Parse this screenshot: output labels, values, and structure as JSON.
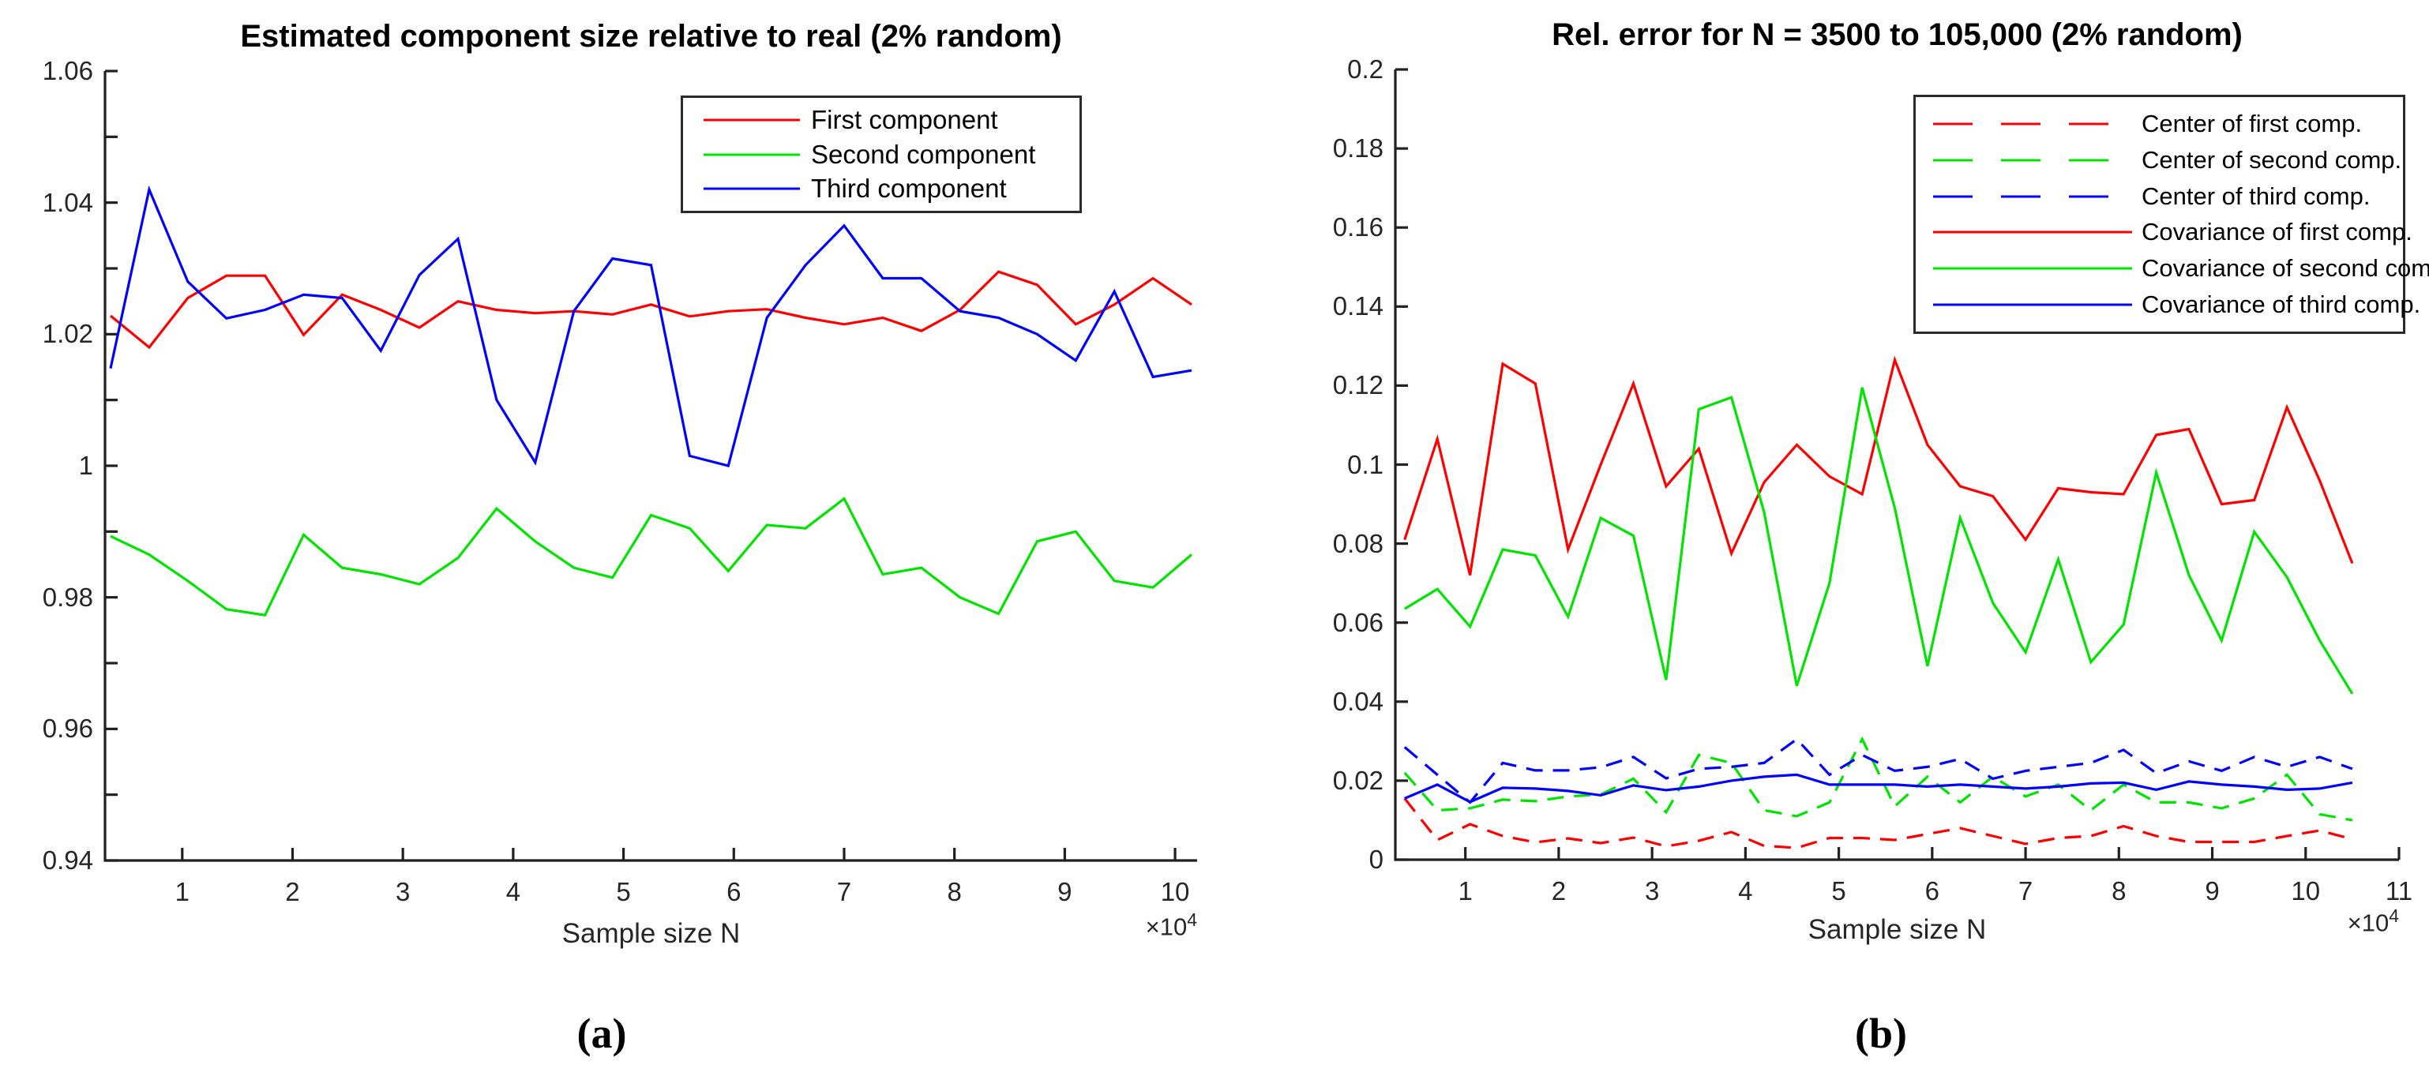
{
  "figure": {
    "background": "#ffffff",
    "axis_color": "#202020",
    "tick_label_color": "#262626",
    "captions": [
      "(a)",
      "(b)"
    ]
  },
  "chart_data": [
    {
      "type": "line",
      "panel": "a",
      "title": "Estimated component size relative to real (2% random)",
      "xlabel": "Sample size N",
      "x_scale_label": {
        "base": "×10",
        "exponent": "4"
      },
      "xlim": [
        0.3,
        10.2
      ],
      "ylim": [
        0.94,
        1.06
      ],
      "grid": false,
      "xticks": {
        "values": [
          1,
          2,
          3,
          4,
          5,
          6,
          7,
          8,
          9,
          10
        ],
        "labels": [
          "1",
          "2",
          "3",
          "4",
          "5",
          "6",
          "7",
          "8",
          "9",
          "10"
        ]
      },
      "yticks": {
        "values": [
          0.94,
          0.96,
          0.98,
          1.0,
          1.02,
          1.04,
          1.06
        ],
        "labels": [
          "0.94",
          "0.96",
          "0.98",
          "1",
          "1.02",
          "1.04",
          "1.06"
        ]
      },
      "y_minor_tick_step": 0.01,
      "legend": {
        "position": "upper right inside",
        "items": [
          {
            "label": "First component",
            "color": "#ff0000",
            "style": "solid"
          },
          {
            "label": "Second component",
            "color": "#00e400",
            "style": "solid"
          },
          {
            "label": "Third component",
            "color": "#0000ff",
            "style": "solid"
          }
        ]
      },
      "x_1e4": [
        0.35,
        0.7,
        1.05,
        1.4,
        1.75,
        2.1,
        2.45,
        2.8,
        3.15,
        3.5,
        3.85,
        4.2,
        4.55,
        4.9,
        5.25,
        5.6,
        5.95,
        6.3,
        6.65,
        7.0,
        7.35,
        7.7,
        8.05,
        8.4,
        8.75,
        9.1,
        9.45,
        9.8,
        10.15
      ],
      "series": [
        {
          "name": "first-component",
          "color": "#ff0000",
          "style": "solid",
          "values": [
            1.0228,
            1.018,
            1.0255,
            1.0289,
            1.0289,
            1.0199,
            1.026,
            1.0237,
            1.021,
            1.025,
            1.0237,
            1.0232,
            1.0235,
            1.023,
            1.0245,
            1.0227,
            1.0235,
            1.0238,
            1.0225,
            1.0215,
            1.0225,
            1.0205,
            1.0237,
            1.0295,
            1.0275,
            1.0215,
            1.0245,
            1.0285,
            1.0245
          ]
        },
        {
          "name": "second-component",
          "color": "#00e400",
          "style": "solid",
          "values": [
            0.9893,
            0.9865,
            0.9825,
            0.9782,
            0.9773,
            0.9895,
            0.9845,
            0.9835,
            0.982,
            0.986,
            0.9935,
            0.9885,
            0.9845,
            0.983,
            0.9925,
            0.9905,
            0.984,
            0.991,
            0.9905,
            0.995,
            0.9835,
            0.9845,
            0.98,
            0.9775,
            0.9885,
            0.99,
            0.9825,
            0.9815,
            0.9865
          ]
        },
        {
          "name": "third-component",
          "color": "#0000ff",
          "style": "solid",
          "values": [
            1.0148,
            1.042,
            1.028,
            1.0224,
            1.0237,
            1.026,
            1.0255,
            1.0175,
            1.029,
            1.0345,
            1.01,
            1.0005,
            1.0235,
            1.0315,
            1.0305,
            1.0015,
            1.0,
            1.0225,
            1.0305,
            1.0365,
            1.0285,
            1.0285,
            1.0235,
            1.0225,
            1.02,
            1.016,
            1.0265,
            1.0135,
            1.0145
          ]
        }
      ]
    },
    {
      "type": "line",
      "panel": "b",
      "title": "Rel.  error for N = 3500 to 105,000 (2% random)",
      "xlabel": "Sample size N",
      "x_scale_label": {
        "base": "×10",
        "exponent": "4"
      },
      "xlim": [
        0.25,
        11.0
      ],
      "ylim": [
        0,
        0.2
      ],
      "grid": false,
      "xticks": {
        "values": [
          1,
          2,
          3,
          4,
          5,
          6,
          7,
          8,
          9,
          10,
          11
        ],
        "labels": [
          "1",
          "2",
          "3",
          "4",
          "5",
          "6",
          "7",
          "8",
          "9",
          "10",
          "11"
        ]
      },
      "yticks": {
        "values": [
          0,
          0.02,
          0.04,
          0.06,
          0.08,
          0.1,
          0.12,
          0.14,
          0.16,
          0.18,
          0.2
        ],
        "labels": [
          "0",
          "0.02",
          "0.04",
          "0.06",
          "0.08",
          "0.1",
          "0.12",
          "0.14",
          "0.16",
          "0.18",
          "0.2"
        ]
      },
      "y_minor_tick_step": null,
      "legend": {
        "position": "upper right inside",
        "items": [
          {
            "label": "Center of first comp.",
            "color": "#ff0000",
            "style": "dashed"
          },
          {
            "label": "Center of second comp.",
            "color": "#00e400",
            "style": "dashed"
          },
          {
            "label": "Center of third comp.",
            "color": "#0000ff",
            "style": "dashed"
          },
          {
            "label": "Covariance of first comp.",
            "color": "#ff0000",
            "style": "solid"
          },
          {
            "label": "Covariance of second comp.",
            "color": "#00e400",
            "style": "solid"
          },
          {
            "label": "Covariance of third comp.",
            "color": "#0000ff",
            "style": "solid"
          }
        ]
      },
      "x_1e4": [
        0.35,
        0.7,
        1.05,
        1.4,
        1.75,
        2.1,
        2.45,
        2.8,
        3.15,
        3.5,
        3.85,
        4.2,
        4.55,
        4.9,
        5.25,
        5.6,
        5.95,
        6.3,
        6.65,
        7.0,
        7.35,
        7.7,
        8.05,
        8.4,
        8.75,
        9.1,
        9.45,
        9.8,
        10.15,
        10.5
      ],
      "series": [
        {
          "name": "center-first-comp",
          "color": "#ff0000",
          "style": "dashed",
          "values": [
            0.0155,
            0.005,
            0.009,
            0.006,
            0.0044,
            0.0054,
            0.0042,
            0.0056,
            0.0034,
            0.0048,
            0.007,
            0.0035,
            0.003,
            0.0055,
            0.0055,
            0.005,
            0.0065,
            0.008,
            0.006,
            0.004,
            0.0055,
            0.006,
            0.0085,
            0.006,
            0.0045,
            0.0045,
            0.0045,
            0.006,
            0.0074,
            0.0052
          ]
        },
        {
          "name": "center-second-comp",
          "color": "#00e400",
          "style": "dashed",
          "values": [
            0.022,
            0.0125,
            0.013,
            0.0152,
            0.0148,
            0.016,
            0.0165,
            0.0205,
            0.012,
            0.0265,
            0.0245,
            0.0125,
            0.011,
            0.0145,
            0.0305,
            0.0135,
            0.021,
            0.0145,
            0.021,
            0.016,
            0.019,
            0.0125,
            0.019,
            0.0145,
            0.0145,
            0.013,
            0.0155,
            0.0215,
            0.0115,
            0.01
          ]
        },
        {
          "name": "center-third-comp",
          "color": "#0000ff",
          "style": "dashed",
          "values": [
            0.0285,
            0.0215,
            0.0145,
            0.0245,
            0.0226,
            0.0226,
            0.0234,
            0.026,
            0.0206,
            0.023,
            0.0235,
            0.0245,
            0.0305,
            0.0215,
            0.0265,
            0.0225,
            0.0235,
            0.0255,
            0.0205,
            0.0225,
            0.0235,
            0.0245,
            0.0278,
            0.0219,
            0.0249,
            0.0225,
            0.026,
            0.0235,
            0.026,
            0.023
          ]
        },
        {
          "name": "covariance-first-comp",
          "color": "#ff0000",
          "style": "solid",
          "values": [
            0.081,
            0.1065,
            0.072,
            0.1255,
            0.1205,
            0.0785,
            0.1,
            0.1205,
            0.0945,
            0.104,
            0.0775,
            0.0955,
            0.105,
            0.097,
            0.0925,
            0.1265,
            0.105,
            0.0945,
            0.092,
            0.081,
            0.094,
            0.093,
            0.0925,
            0.1075,
            0.109,
            0.09,
            0.091,
            0.1145,
            0.096,
            0.075
          ]
        },
        {
          "name": "covariance-second-comp",
          "color": "#00e400",
          "style": "solid",
          "values": [
            0.0635,
            0.0685,
            0.059,
            0.0785,
            0.077,
            0.0615,
            0.0865,
            0.082,
            0.0455,
            0.114,
            0.117,
            0.088,
            0.044,
            0.07,
            0.1195,
            0.089,
            0.049,
            0.0865,
            0.065,
            0.0525,
            0.076,
            0.05,
            0.0595,
            0.098,
            0.072,
            0.0555,
            0.083,
            0.0715,
            0.0555,
            0.042
          ]
        },
        {
          "name": "covariance-third-comp",
          "color": "#0000ff",
          "style": "solid",
          "values": [
            0.0155,
            0.019,
            0.0146,
            0.0182,
            0.018,
            0.0174,
            0.0163,
            0.0188,
            0.0176,
            0.0185,
            0.02,
            0.021,
            0.0215,
            0.019,
            0.019,
            0.019,
            0.0185,
            0.019,
            0.0185,
            0.018,
            0.0185,
            0.0193,
            0.0195,
            0.0177,
            0.0198,
            0.019,
            0.0185,
            0.0177,
            0.018,
            0.0195
          ]
        }
      ]
    }
  ]
}
